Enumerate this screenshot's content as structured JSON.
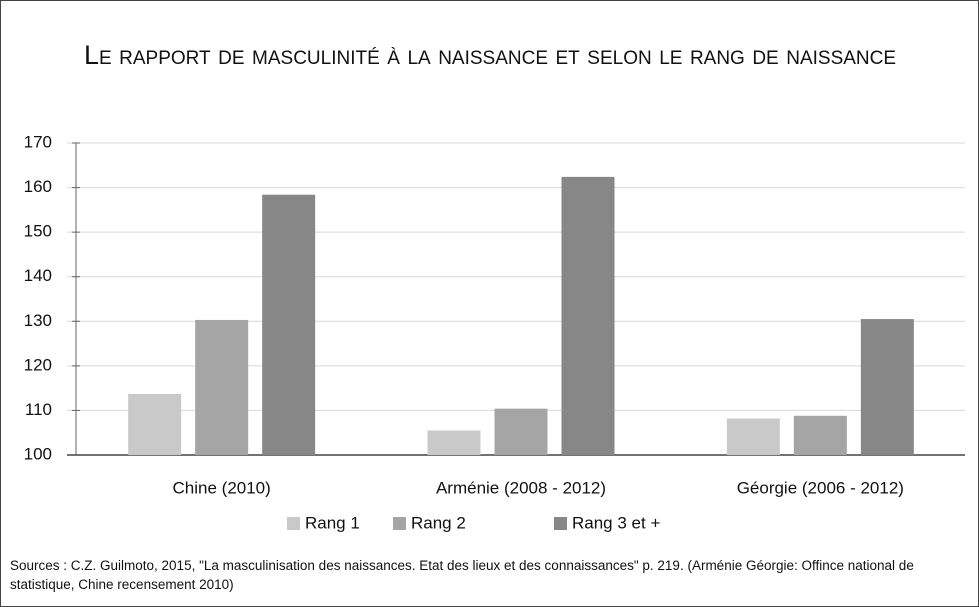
{
  "chart_data": {
    "type": "bar",
    "title": "Le rapport de masculinité à la naissance et selon le rang de naissance",
    "categories": [
      "Chine (2010)",
      "Arménie (2008 - 2012)",
      "Géorgie (2006 - 2012)"
    ],
    "series": [
      {
        "name": "Rang 1",
        "color": "#c9c9c9",
        "values": [
          113.7,
          105.5,
          108.2
        ]
      },
      {
        "name": "Rang 2",
        "color": "#a5a5a5",
        "values": [
          130.3,
          110.4,
          108.8
        ]
      },
      {
        "name": "Rang 3 et +",
        "color": "#878787",
        "values": [
          158.4,
          162.4,
          130.5
        ]
      }
    ],
    "ylim": [
      100,
      170
    ],
    "yticks": [
      100,
      110,
      120,
      130,
      140,
      150,
      160,
      170
    ],
    "grid": true,
    "legend": "bottom",
    "source": "Sources : C.Z. Guilmoto, 2015, \"La masculinisation des naissances. Etat des lieux et des connaissances\" p. 219.  (Arménie Géorgie: Offince national de statistique, Chine recensement 2010)"
  }
}
